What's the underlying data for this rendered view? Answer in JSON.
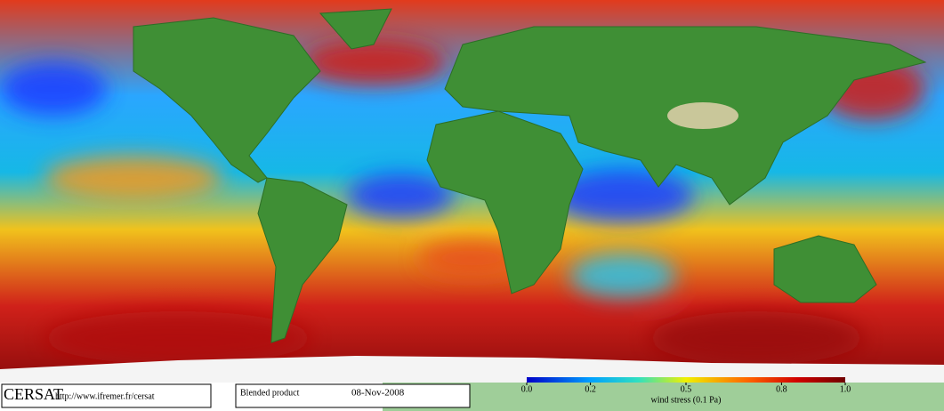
{
  "logo": "CERSAT",
  "url": "http://www.ifremer.fr/cersat",
  "product": "Blended product",
  "date": "08-Nov-2008",
  "colorbar": {
    "ticks": [
      {
        "value": 0,
        "label": "0.0"
      },
      0.2,
      0.5,
      0.8,
      {
        "value": 1,
        "label": "1.0"
      }
    ],
    "label": "wind stress (0.1 Pa)"
  }
}
